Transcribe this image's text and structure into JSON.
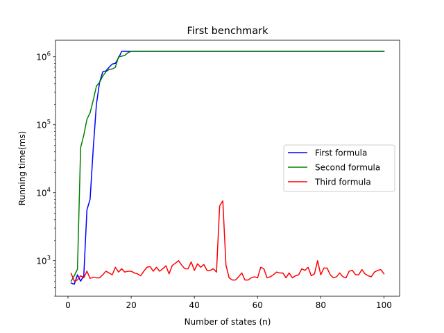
{
  "chart_data": {
    "type": "line",
    "title": "First benchmark",
    "xlabel": "Number of states (n)",
    "ylabel": "Running time(ms)",
    "yscale": "log",
    "xlim": [
      -3.95,
      104.95
    ],
    "ylim": [
      300,
      1750000
    ],
    "xticks": [
      0,
      20,
      40,
      60,
      80,
      100
    ],
    "xtick_labels": [
      "0",
      "20",
      "40",
      "60",
      "80",
      "100"
    ],
    "yticks": [
      {
        "value": 1000,
        "base": "10",
        "exp": "3"
      },
      {
        "value": 10000,
        "base": "10",
        "exp": "4"
      },
      {
        "value": 100000,
        "base": "10",
        "exp": "5"
      },
      {
        "value": 1000000,
        "base": "10",
        "exp": "6"
      }
    ],
    "grid": false,
    "legend_position": "center-right",
    "series": [
      {
        "name": "First formula",
        "color": "#0000ff",
        "x": [
          1,
          2,
          3,
          4,
          5,
          6,
          7,
          8,
          9,
          10,
          11,
          12,
          13,
          14,
          15,
          16,
          17,
          18,
          19,
          20,
          25,
          30,
          40,
          50,
          60,
          70,
          80,
          90,
          100
        ],
        "y": [
          470,
          450,
          620,
          500,
          600,
          5600,
          8000,
          45000,
          200000,
          420000,
          600000,
          620000,
          700000,
          780000,
          800000,
          960000,
          1200000,
          1200000,
          1200000,
          1200000,
          1200000,
          1200000,
          1200000,
          1200000,
          1200000,
          1200000,
          1200000,
          1200000,
          1200000
        ]
      },
      {
        "name": "Second formula",
        "color": "#008000",
        "x": [
          1,
          2,
          3,
          4,
          5,
          6,
          7,
          8,
          9,
          10,
          11,
          12,
          13,
          14,
          15,
          16,
          17,
          18,
          19,
          20,
          25,
          30,
          40,
          50,
          60,
          70,
          80,
          90,
          100
        ],
        "y": [
          500,
          600,
          750,
          46000,
          70000,
          120000,
          150000,
          230000,
          370000,
          420000,
          520000,
          600000,
          650000,
          660000,
          700000,
          1000000,
          1020000,
          1050000,
          1150000,
          1200000,
          1200000,
          1200000,
          1200000,
          1200000,
          1200000,
          1200000,
          1200000,
          1200000,
          1200000
        ]
      },
      {
        "name": "Third formula",
        "color": "#ff0000",
        "x": [
          1,
          2,
          3,
          4,
          5,
          6,
          7,
          8,
          9,
          10,
          11,
          12,
          13,
          14,
          15,
          16,
          17,
          18,
          19,
          20,
          21,
          22,
          23,
          24,
          25,
          26,
          27,
          28,
          29,
          30,
          31,
          32,
          33,
          34,
          35,
          36,
          37,
          38,
          39,
          40,
          41,
          42,
          43,
          44,
          45,
          46,
          47,
          48,
          49,
          50,
          51,
          52,
          53,
          54,
          55,
          56,
          57,
          58,
          59,
          60,
          61,
          62,
          63,
          64,
          65,
          66,
          67,
          68,
          69,
          70,
          71,
          72,
          73,
          74,
          75,
          76,
          77,
          78,
          79,
          80,
          81,
          82,
          83,
          84,
          85,
          86,
          87,
          88,
          89,
          90,
          91,
          92,
          93,
          94,
          95,
          96,
          97,
          98,
          99,
          100
        ],
        "y": [
          650,
          500,
          520,
          600,
          560,
          700,
          550,
          570,
          560,
          560,
          620,
          700,
          660,
          620,
          800,
          680,
          760,
          680,
          700,
          700,
          660,
          640,
          600,
          700,
          800,
          820,
          700,
          800,
          700,
          760,
          840,
          640,
          850,
          920,
          1000,
          860,
          760,
          760,
          960,
          720,
          900,
          800,
          880,
          720,
          720,
          760,
          680,
          6400,
          7600,
          860,
          560,
          520,
          520,
          580,
          660,
          520,
          520,
          560,
          580,
          560,
          800,
          760,
          560,
          580,
          620,
          680,
          660,
          660,
          560,
          660,
          560,
          600,
          620,
          760,
          720,
          800,
          600,
          640,
          1000,
          620,
          780,
          780,
          620,
          560,
          580,
          660,
          580,
          560,
          700,
          720,
          620,
          620,
          740,
          640,
          600,
          580,
          680,
          720,
          740,
          640
        ]
      }
    ]
  }
}
